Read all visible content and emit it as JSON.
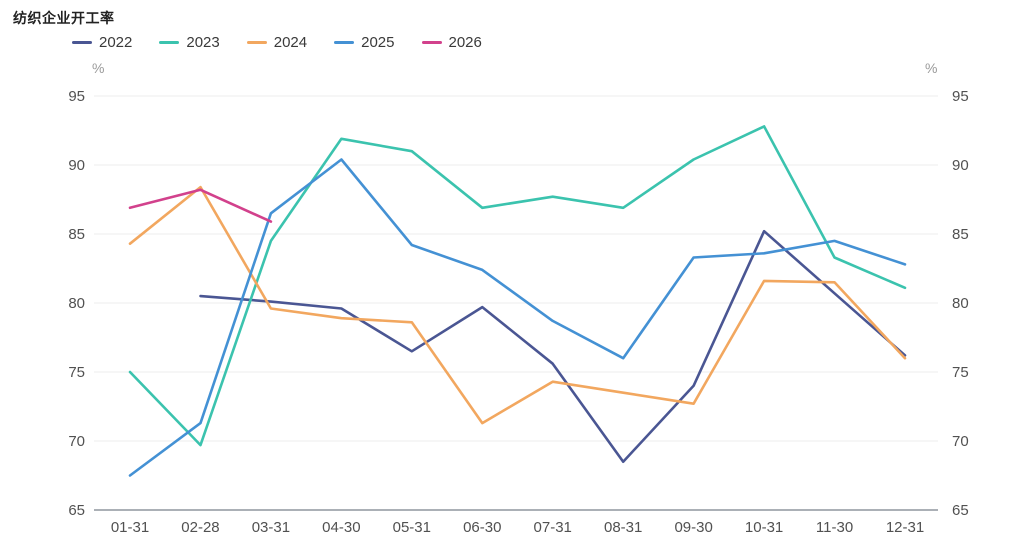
{
  "title": "纺织企业开工率",
  "y_unit_left": "%",
  "y_unit_right": "%",
  "legend": [
    {
      "label": "2022",
      "color": "#4A5693"
    },
    {
      "label": "2023",
      "color": "#3BC3AE"
    },
    {
      "label": "2024",
      "color": "#F2A75F"
    },
    {
      "label": "2025",
      "color": "#4491D4"
    },
    {
      "label": "2026",
      "color": "#D2418C"
    }
  ],
  "chart_data": {
    "type": "line",
    "title": "纺织企业开工率",
    "ylabel": "%",
    "categories": [
      "01-31",
      "02-28",
      "03-31",
      "04-30",
      "05-31",
      "06-30",
      "07-31",
      "08-31",
      "09-30",
      "10-31",
      "11-30",
      "12-31"
    ],
    "series": [
      {
        "name": "2022",
        "color": "#4A5693",
        "values": [
          null,
          80.5,
          80.1,
          79.6,
          76.5,
          79.7,
          75.6,
          68.5,
          74.0,
          85.2,
          80.7,
          76.2
        ]
      },
      {
        "name": "2023",
        "color": "#3BC3AE",
        "values": [
          75.0,
          69.7,
          84.5,
          91.9,
          91.0,
          86.9,
          87.7,
          86.9,
          90.4,
          92.8,
          83.3,
          81.1
        ]
      },
      {
        "name": "2024",
        "color": "#F2A75F",
        "values": [
          84.3,
          88.4,
          79.6,
          78.9,
          78.6,
          71.3,
          74.3,
          73.5,
          72.7,
          81.6,
          81.5,
          76.0
        ]
      },
      {
        "name": "2025",
        "color": "#4491D4",
        "values": [
          67.5,
          71.3,
          86.5,
          90.4,
          84.2,
          82.4,
          78.7,
          76.0,
          83.3,
          83.6,
          84.5,
          82.8
        ]
      },
      {
        "name": "2026",
        "color": "#D2418C",
        "values": [
          86.9,
          88.2,
          85.9,
          null,
          null,
          null,
          null,
          null,
          null,
          null,
          null,
          null
        ]
      }
    ],
    "ylim": [
      65,
      95
    ],
    "yticks": [
      65,
      70,
      75,
      80,
      85,
      90,
      95
    ],
    "grid": true,
    "legend_position": "top",
    "axis_labels_both_sides": true
  },
  "colors": {
    "grid_line": "#ededed",
    "axis_line": "#57606e",
    "tick_label": "#515151",
    "unit_label": "#9a9a9a"
  }
}
